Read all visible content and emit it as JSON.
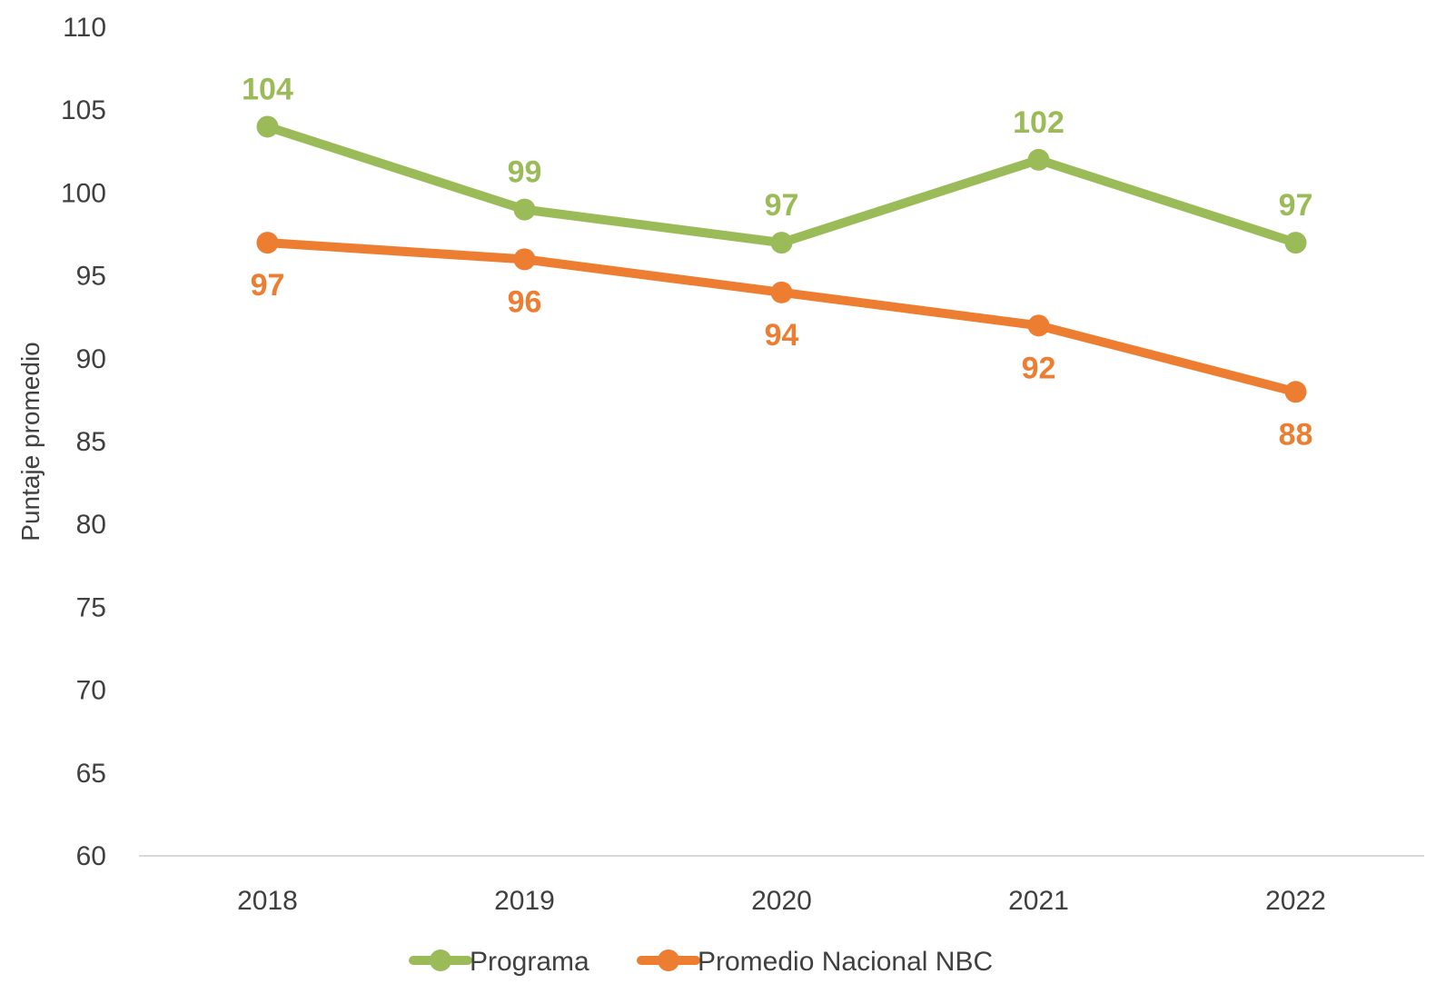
{
  "chart_data": {
    "type": "line",
    "categories": [
      "2018",
      "2019",
      "2020",
      "2021",
      "2022"
    ],
    "series": [
      {
        "name": "Programa",
        "values": [
          104,
          99,
          97,
          102,
          97
        ],
        "color": "#9BBB59",
        "label_position": "above"
      },
      {
        "name": "Promedio Nacional  NBC",
        "values": [
          97,
          96,
          94,
          92,
          88
        ],
        "color": "#ED7D31",
        "label_position": "below"
      }
    ],
    "title": "",
    "xlabel": "",
    "ylabel": "Puntaje promedio",
    "ylim": [
      60,
      110
    ],
    "yticks": [
      60,
      65,
      70,
      75,
      80,
      85,
      90,
      95,
      100,
      105,
      110
    ],
    "grid": false,
    "legend": "bottom",
    "axis_color": "#D9D9D9",
    "text_color": "#404040"
  }
}
